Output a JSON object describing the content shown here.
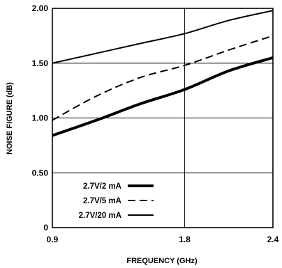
{
  "chart_data": {
    "type": "line",
    "xlabel": "FREQUENCY (GHz)",
    "ylabel": "NOISE FIGURE (dB)",
    "xlim": [
      0.9,
      2.4
    ],
    "ylim": [
      0,
      2.0
    ],
    "x_ticks": [
      0.9,
      1.8,
      2.4
    ],
    "x_tick_labels": [
      "0.9",
      "1.8",
      "2.4"
    ],
    "y_ticks": [
      0,
      0.5,
      1.0,
      1.5,
      2.0
    ],
    "y_tick_labels": [
      "0",
      "0.50",
      "1.00",
      "1.50",
      "2.00"
    ],
    "grid": true,
    "legend_position": "bottom-left",
    "series": [
      {
        "name": "2.7V/2 mA",
        "style": "thick-solid",
        "x": [
          0.9,
          1.2,
          1.5,
          1.8,
          2.1,
          2.4
        ],
        "y": [
          0.84,
          0.98,
          1.13,
          1.26,
          1.43,
          1.55
        ]
      },
      {
        "name": "2.7V/5 mA",
        "style": "dashed",
        "x": [
          0.9,
          1.2,
          1.5,
          1.8,
          2.1,
          2.4
        ],
        "y": [
          0.98,
          1.2,
          1.37,
          1.48,
          1.62,
          1.75
        ]
      },
      {
        "name": "2.7V/20 mA",
        "style": "thin-solid",
        "x": [
          0.9,
          1.2,
          1.5,
          1.8,
          2.1,
          2.4
        ],
        "y": [
          1.5,
          1.59,
          1.68,
          1.77,
          1.89,
          1.98
        ]
      }
    ]
  }
}
